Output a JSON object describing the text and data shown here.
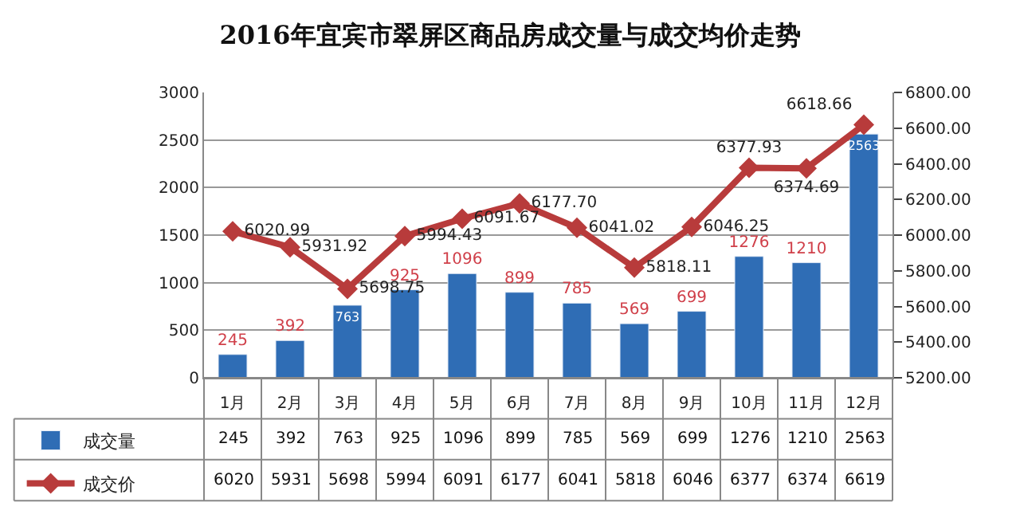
{
  "chart_data": {
    "type": "bar",
    "title": "2016年宜宾市翠屏区商品房成交量与成交均价走势",
    "categories": [
      "1月",
      "2月",
      "3月",
      "4月",
      "5月",
      "6月",
      "7月",
      "8月",
      "9月",
      "10月",
      "11月",
      "12月"
    ],
    "series": [
      {
        "name": "成交量",
        "color": "#2f6db5",
        "values": [
          245,
          392,
          763,
          925,
          1096,
          899,
          785,
          569,
          699,
          1276,
          1210,
          2563
        ],
        "value_labels": [
          "245",
          "392",
          "763",
          "925",
          "1096",
          "899",
          "785",
          "569",
          "699",
          "1276",
          "1210",
          "2563"
        ]
      },
      {
        "name": "成交价",
        "type": "line",
        "axis": "y2",
        "color": "#b83b3b",
        "marker": "diamond",
        "values": [
          6020.99,
          5931.92,
          5698.75,
          5994.43,
          6091.67,
          6177.7,
          6041.02,
          5818.11,
          6046.25,
          6377.93,
          6374.69,
          6618.66
        ],
        "value_labels": [
          "6020.99",
          "5931.92",
          "5698.75",
          "5994.43",
          "6091.67",
          "6177.70",
          "6041.02",
          "5818.11",
          "6046.25",
          "6377.93",
          "6374.69",
          "6618.66"
        ]
      }
    ],
    "annotations": [
      "6020",
      "5931",
      "5698",
      "5994",
      "6091",
      "6177",
      "6041",
      "5818",
      "6046",
      "6377",
      "6374",
      "6619"
    ],
    "ylim": [
      0,
      3000
    ],
    "yticks": [
      0,
      500,
      1000,
      1500,
      2000,
      2500,
      3000
    ],
    "y2lim": [
      5200,
      6800
    ],
    "y2ticks": [
      {
        "value": 5200,
        "label": "5200.00"
      },
      {
        "value": 5400,
        "label": "5400.00"
      },
      {
        "value": 5600,
        "label": "5600.00"
      },
      {
        "value": 5800,
        "label": "5800.00"
      },
      {
        "value": 6000,
        "label": "6000.00"
      },
      {
        "value": 6200,
        "label": "6200.00"
      },
      {
        "value": 6400,
        "label": "6400.00"
      },
      {
        "value": 6600,
        "label": "6600.00"
      },
      {
        "value": 6800,
        "label": "6800.00"
      }
    ],
    "grid": "y",
    "legend": "bottom left"
  }
}
